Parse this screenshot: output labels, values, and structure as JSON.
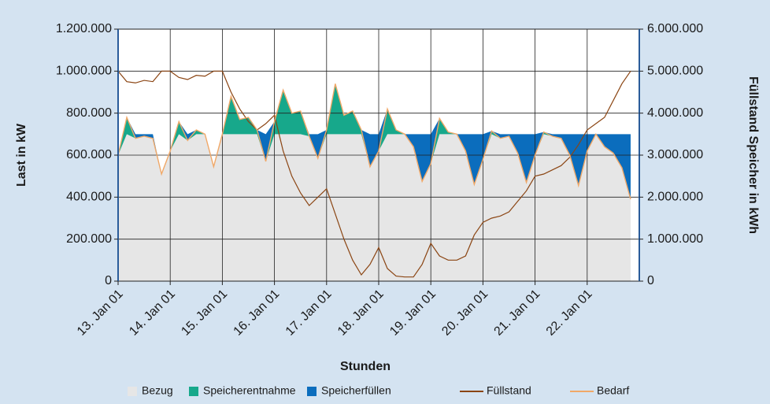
{
  "chart_data": {
    "type": "area",
    "xlabel": "Stunden",
    "ylabel": "Last in kW",
    "y2label": "Füllstand Speicher in kWh",
    "x": [
      0,
      4,
      8,
      12,
      16,
      20,
      24,
      28,
      32,
      36,
      40,
      44,
      48,
      52,
      56,
      60,
      64,
      68,
      72,
      76,
      80,
      84,
      88,
      92,
      96,
      100,
      104,
      108,
      112,
      116,
      120,
      124,
      128,
      132,
      136,
      140,
      144,
      148,
      152,
      156,
      160,
      164,
      168,
      172,
      176,
      180,
      184,
      188,
      192,
      196,
      200,
      204,
      208,
      212,
      216,
      220,
      224,
      228,
      232,
      236
    ],
    "xlim": [
      0,
      240
    ],
    "xticks": [
      {
        "value": 0,
        "label": "13. Jan 01"
      },
      {
        "value": 24,
        "label": "14. Jan 01"
      },
      {
        "value": 48,
        "label": "15. Jan 01"
      },
      {
        "value": 72,
        "label": "16. Jan 01"
      },
      {
        "value": 96,
        "label": "17. Jan 01"
      },
      {
        "value": 120,
        "label": "18. Jan 01"
      },
      {
        "value": 144,
        "label": "19. Jan 01"
      },
      {
        "value": 168,
        "label": "20. Jan 01"
      },
      {
        "value": 192,
        "label": "21. Jan 01"
      },
      {
        "value": 216,
        "label": "22. Jan 01"
      }
    ],
    "ylim": [
      0,
      1200000
    ],
    "yticks": [
      0,
      {
        "value": 200000,
        "label": "200.000"
      },
      {
        "value": 400000,
        "label": "400.000"
      },
      {
        "value": 600000,
        "label": "600.000"
      },
      {
        "value": 800000,
        "label": "800.000"
      },
      {
        "value": 1000000,
        "label": "1.000.000"
      },
      {
        "value": 1200000,
        "label": "1.200.000"
      }
    ],
    "y2lim": [
      0,
      6000000
    ],
    "y2ticks": [
      0,
      {
        "value": 1000000,
        "label": "1.000.000"
      },
      {
        "value": 2000000,
        "label": "2.000.000"
      },
      {
        "value": 3000000,
        "label": "3.000.000"
      },
      {
        "value": 4000000,
        "label": "4.000.000"
      },
      {
        "value": 5000000,
        "label": "5.000.000"
      },
      {
        "value": 6000000,
        "label": "6.000.000"
      }
    ],
    "grid": true,
    "legend": "bottom",
    "series": [
      {
        "name": "Bezug",
        "color": "#e6e6e6",
        "kind": "area",
        "values": [
          600000,
          700000,
          680000,
          690000,
          680000,
          510000,
          620000,
          700000,
          670000,
          700000,
          700000,
          545000,
          700000,
          700000,
          700000,
          700000,
          700000,
          570000,
          700000,
          700000,
          700000,
          700000,
          690000,
          585000,
          700000,
          700000,
          700000,
          700000,
          700000,
          545000,
          620000,
          700000,
          700000,
          700000,
          640000,
          475000,
          560000,
          700000,
          700000,
          700000,
          620000,
          460000,
          580000,
          700000,
          680000,
          690000,
          610000,
          470000,
          600000,
          700000,
          690000,
          680000,
          600000,
          455000,
          620000,
          700000,
          640000,
          610000,
          540000,
          390000
        ]
      },
      {
        "name": "Speicherentnahme",
        "color": "#17a88b",
        "kind": "area",
        "values": [
          0,
          80000,
          0,
          0,
          0,
          0,
          0,
          60000,
          0,
          20000,
          0,
          0,
          0,
          180000,
          70000,
          80000,
          20000,
          0,
          60000,
          210000,
          100000,
          110000,
          0,
          0,
          20000,
          240000,
          90000,
          110000,
          20000,
          0,
          0,
          120000,
          20000,
          0,
          0,
          0,
          0,
          75000,
          10000,
          0,
          0,
          0,
          0,
          15000,
          0,
          0,
          0,
          0,
          0,
          10000,
          0,
          0,
          0,
          0,
          0,
          0,
          0,
          0,
          0,
          0
        ]
      },
      {
        "name": "Speicherfüllen",
        "color": "#0b6dbd",
        "kind": "area",
        "values": [
          0,
          0,
          20000,
          10000,
          20000,
          0,
          0,
          0,
          30000,
          0,
          0,
          0,
          0,
          0,
          0,
          0,
          0,
          130000,
          0,
          0,
          0,
          0,
          10000,
          115000,
          0,
          0,
          0,
          0,
          0,
          155000,
          80000,
          0,
          0,
          0,
          60000,
          225000,
          140000,
          0,
          0,
          0,
          80000,
          240000,
          120000,
          0,
          20000,
          10000,
          90000,
          230000,
          100000,
          0,
          10000,
          20000,
          100000,
          245000,
          80000,
          0,
          60000,
          90000,
          160000,
          310000
        ]
      },
      {
        "name": "Füllstand",
        "color": "#8b4513",
        "kind": "line",
        "axis": "y2",
        "values": [
          5000000,
          4750000,
          4720000,
          4780000,
          4750000,
          5000000,
          5000000,
          4850000,
          4800000,
          4900000,
          4880000,
          5000000,
          5000000,
          4500000,
          4100000,
          3800000,
          3600000,
          3750000,
          3950000,
          3100000,
          2500000,
          2100000,
          1800000,
          2000000,
          2200000,
          1600000,
          1000000,
          500000,
          150000,
          400000,
          800000,
          300000,
          120000,
          100000,
          100000,
          400000,
          900000,
          600000,
          500000,
          500000,
          600000,
          1100000,
          1400000,
          1500000,
          1550000,
          1650000,
          1900000,
          2150000,
          2500000,
          2550000,
          2650000,
          2750000,
          2950000,
          3250000,
          3600000,
          3750000,
          3900000,
          4300000,
          4700000,
          5000000
        ]
      },
      {
        "name": "Bedarf",
        "color": "#f0a868",
        "kind": "line",
        "values": [
          600000,
          780000,
          680000,
          690000,
          680000,
          510000,
          620000,
          760000,
          670000,
          720000,
          700000,
          545000,
          700000,
          880000,
          770000,
          780000,
          720000,
          570000,
          760000,
          910000,
          800000,
          810000,
          690000,
          585000,
          720000,
          940000,
          790000,
          810000,
          720000,
          545000,
          620000,
          820000,
          720000,
          700000,
          640000,
          475000,
          560000,
          775000,
          710000,
          700000,
          620000,
          460000,
          580000,
          715000,
          680000,
          690000,
          610000,
          470000,
          600000,
          710000,
          690000,
          680000,
          600000,
          455000,
          620000,
          700000,
          640000,
          610000,
          540000,
          390000
        ]
      }
    ]
  }
}
